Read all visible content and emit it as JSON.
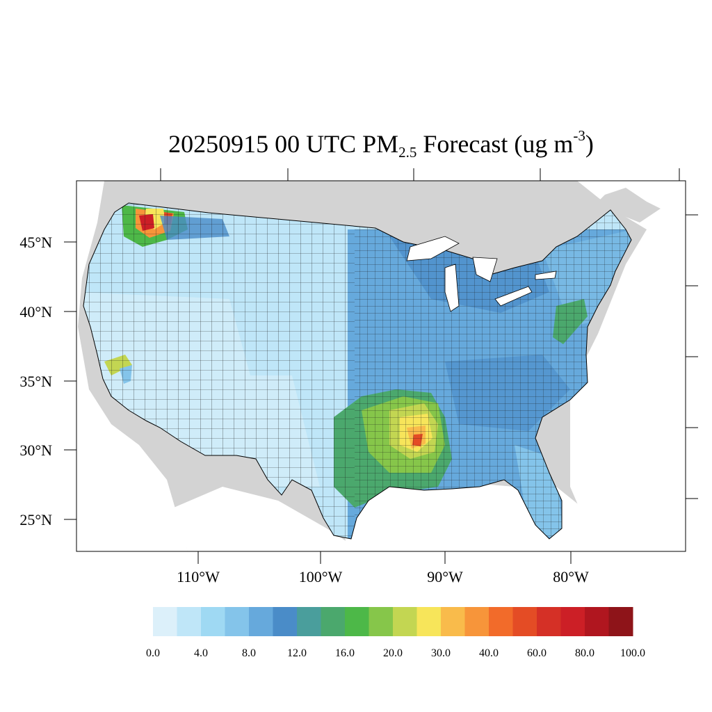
{
  "title": {
    "prefix": "20250915 00 UTC PM",
    "subscript": "2.5",
    "middle": " Forecast (ug m",
    "superscript": "-3",
    "suffix": ")"
  },
  "map": {
    "region": "Contiguous United States",
    "variable": "PM2.5",
    "units": "ug m-3",
    "land_outside_color": "#d3d3d3",
    "ocean_color": "#ffffff",
    "latitude_labels": [
      "45°N",
      "40°N",
      "35°N",
      "30°N",
      "25°N"
    ],
    "longitude_labels": [
      "110°W",
      "100°W",
      "90°W",
      "80°W"
    ],
    "hotspots": [
      {
        "location": "Northern Idaho / NW Montana",
        "level": "80.0-100.0"
      },
      {
        "location": "East Texas / NW Louisiana",
        "level": "40.0-80.0"
      },
      {
        "location": "Central California",
        "level": "20.0-30.0"
      },
      {
        "location": "New Jersey / Pennsylvania corridor",
        "level": "16.0-20.0"
      }
    ]
  },
  "colorbar": {
    "colors": [
      "#dcf0fa",
      "#bfe6f8",
      "#9fd9f3",
      "#84c4ea",
      "#66a9dc",
      "#4a8cc8",
      "#4a9e9c",
      "#4ba86d",
      "#4db848",
      "#86c64a",
      "#c3d652",
      "#f7e55a",
      "#f9bb4b",
      "#f7953a",
      "#f26b2a",
      "#e44c25",
      "#d53026",
      "#cc1f26",
      "#b0161f",
      "#8e1419"
    ],
    "labels": [
      "0.0",
      "4.0",
      "8.0",
      "12.0",
      "16.0",
      "20.0",
      "30.0",
      "40.0",
      "60.0",
      "80.0",
      "100.0"
    ]
  }
}
